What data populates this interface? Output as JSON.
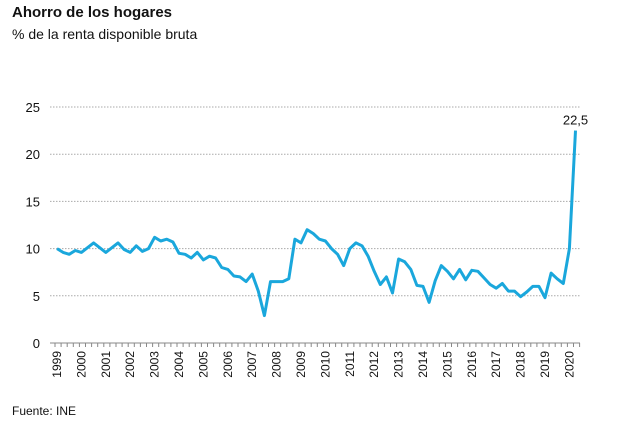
{
  "chart_data": {
    "type": "line",
    "title": "Ahorro de los hogares",
    "subtitle": "% de la renta disponible bruta",
    "source": "Fuente: INE",
    "xlabel": "",
    "ylabel": "",
    "ylim": [
      0,
      25
    ],
    "yticks": [
      "0",
      "5",
      "10",
      "15",
      "20",
      "25"
    ],
    "ytick_values": [
      0,
      5,
      10,
      15,
      20,
      25
    ],
    "xticks": [
      "1999",
      "2000",
      "2001",
      "2002",
      "2003",
      "2004",
      "2005",
      "2006",
      "2007",
      "2008",
      "2009",
      "2010",
      "2011",
      "2012",
      "2013",
      "2014",
      "2015",
      "2016",
      "2017",
      "2018",
      "2019",
      "2020"
    ],
    "x_start": "1999 Q1",
    "frequency": "quarterly",
    "grid": true,
    "series": [
      {
        "name": "Ahorro de los hogares",
        "color": "#1aa7dc",
        "values": [
          10,
          9.6,
          9.4,
          9.8,
          9.6,
          10.1,
          10.6,
          10.1,
          9.6,
          10.1,
          10.6,
          9.9,
          9.6,
          10.3,
          9.7,
          10.0,
          11.2,
          10.8,
          11.0,
          10.7,
          9.5,
          9.4,
          9.0,
          9.6,
          8.8,
          9.2,
          9.0,
          8.0,
          7.8,
          7.1,
          7.0,
          6.5,
          7.3,
          5.5,
          2.9,
          6.5,
          6.5,
          6.5,
          6.8,
          11.0,
          10.6,
          12.0,
          11.6,
          11.0,
          10.8,
          10.0,
          9.4,
          8.2,
          10.0,
          10.6,
          10.3,
          9.2,
          7.6,
          6.2,
          7.0,
          5.3,
          8.9,
          8.6,
          7.8,
          6.1,
          6.0,
          4.3,
          6.6,
          8.2,
          7.6,
          6.8,
          7.8,
          6.7,
          7.7,
          7.6,
          6.9,
          6.2,
          5.8,
          6.3,
          5.5,
          5.5,
          4.9,
          5.4,
          6.0,
          6.0,
          4.8,
          7.4,
          6.8,
          6.3,
          10.0,
          22.5
        ]
      }
    ],
    "annotations": [
      {
        "label": "22,5",
        "point": "2020 Q2",
        "value": 22.5
      }
    ]
  }
}
